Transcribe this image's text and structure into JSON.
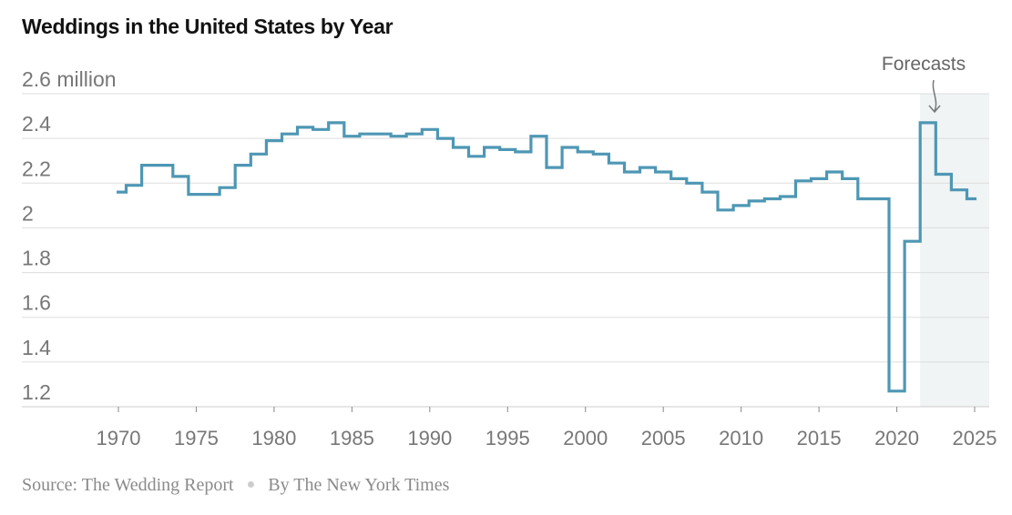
{
  "chart_data": {
    "type": "line",
    "step": true,
    "title": "Weddings in the United States by Year",
    "ylabel_unit": "million",
    "xlim": [
      1970,
      2025
    ],
    "ylim": [
      1.2,
      2.6
    ],
    "yticks": [
      1.2,
      1.4,
      1.6,
      1.8,
      2,
      2.2,
      2.4,
      2.6
    ],
    "ytick_labels": [
      "1.2",
      "1.4",
      "1.6",
      "1.8",
      "2",
      "2.2",
      "2.4",
      "2.6 million"
    ],
    "xticks": [
      1970,
      1975,
      1980,
      1985,
      1990,
      1995,
      2000,
      2005,
      2010,
      2015,
      2020,
      2025
    ],
    "xtick_labels": [
      "1970",
      "1975",
      "1980",
      "1985",
      "1990",
      "1995",
      "2000",
      "2005",
      "2010",
      "2015",
      "2020",
      "2025"
    ],
    "grid": true,
    "forecast_start": 2022,
    "annotation": "Forecasts",
    "colors": {
      "line": "#4e97b4",
      "forecast_shade": "#f0f4f4",
      "grid": "#dddddd"
    },
    "series": [
      {
        "x": [
          1970,
          1971,
          1972,
          1973,
          1974,
          1975,
          1976,
          1977,
          1978,
          1979,
          1980,
          1981,
          1982,
          1983,
          1984,
          1985,
          1986,
          1987,
          1988,
          1989,
          1990,
          1991,
          1992,
          1993,
          1994,
          1995,
          1996,
          1997,
          1998,
          1999,
          2000,
          2001,
          2002,
          2003,
          2004,
          2005,
          2006,
          2007,
          2008,
          2009,
          2010,
          2011,
          2012,
          2013,
          2014,
          2015,
          2016,
          2017,
          2018,
          2019,
          2020,
          2021,
          2022,
          2023,
          2024,
          2025
        ],
        "values": [
          2.16,
          2.19,
          2.28,
          2.28,
          2.23,
          2.15,
          2.15,
          2.18,
          2.28,
          2.33,
          2.39,
          2.42,
          2.45,
          2.44,
          2.47,
          2.41,
          2.42,
          2.42,
          2.41,
          2.42,
          2.44,
          2.4,
          2.36,
          2.32,
          2.36,
          2.35,
          2.34,
          2.41,
          2.27,
          2.36,
          2.34,
          2.33,
          2.29,
          2.25,
          2.27,
          2.25,
          2.22,
          2.2,
          2.16,
          2.08,
          2.1,
          2.12,
          2.13,
          2.14,
          2.21,
          2.22,
          2.25,
          2.22,
          2.13,
          2.13,
          1.27,
          1.94,
          2.47,
          2.24,
          2.17,
          2.13
        ]
      }
    ]
  },
  "footer": {
    "source": "Source: The Wedding Report",
    "byline": "By The New York Times"
  }
}
